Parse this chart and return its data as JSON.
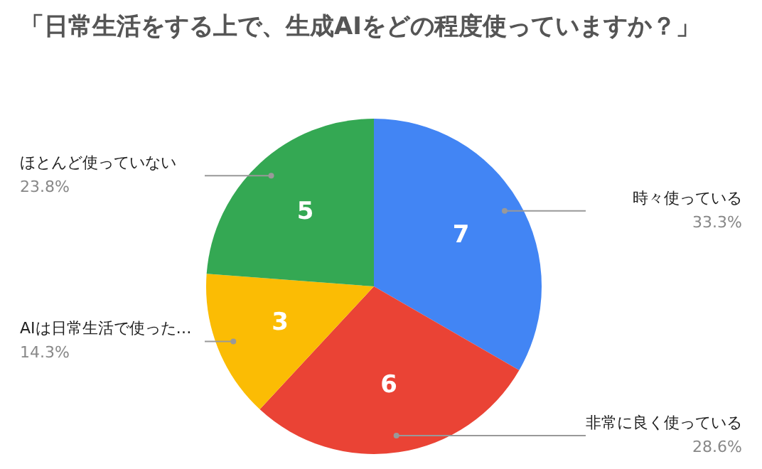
{
  "chart_data": {
    "type": "pie",
    "title": "「日常生活をする上で、生成AIをどの程度使っていますか？」",
    "categories": [
      "時々使っている",
      "非常に良く使っている",
      "AIは日常生活で使った…",
      "ほとんど使っていない"
    ],
    "values": [
      7,
      6,
      3,
      5
    ],
    "colors": [
      "#4285f4",
      "#ea4335",
      "#fbbc04",
      "#34a853"
    ],
    "data_labels": true,
    "annotations": [
      "33.3%",
      "28.6%",
      "14.3%",
      "23.8%"
    ],
    "legend": false
  }
}
